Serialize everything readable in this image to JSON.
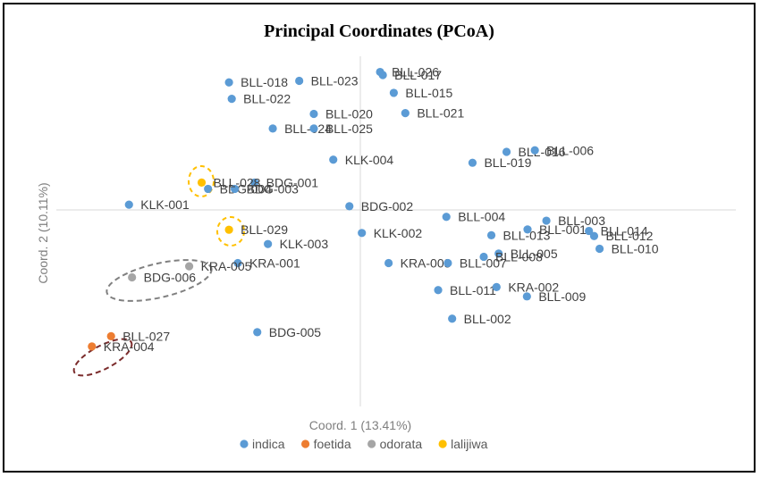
{
  "chart_data": {
    "type": "scatter",
    "title": "Principal Coordinates (PCoA)",
    "xlabel": "Coord. 1 (13.41%)",
    "ylabel": "Coord. 2 (10.11%)",
    "xlim": [
      -1.0,
      1.0
    ],
    "ylim": [
      -1.0,
      1.0
    ],
    "grid": false,
    "legend_position": "bottom",
    "series": [
      {
        "name": "indica",
        "color": "#5b9bd5",
        "points": [
          {
            "label": "BLL-018",
            "x": -0.432,
            "y": 0.83
          },
          {
            "label": "BLL-023",
            "x": -0.201,
            "y": 0.84
          },
          {
            "label": "BLL-026",
            "x": 0.065,
            "y": 0.898
          },
          {
            "label": "BLL-017",
            "x": 0.074,
            "y": 0.878
          },
          {
            "label": "BLL-022",
            "x": -0.423,
            "y": 0.723
          },
          {
            "label": "BLL-015",
            "x": 0.11,
            "y": 0.762
          },
          {
            "label": "BLL-020",
            "x": -0.153,
            "y": 0.625
          },
          {
            "label": "BLL-021",
            "x": 0.148,
            "y": 0.63
          },
          {
            "label": "BLL-024",
            "x": -0.288,
            "y": 0.53
          },
          {
            "label": "BLL-025",
            "x": -0.153,
            "y": 0.53
          },
          {
            "label": "BLL-016",
            "x": 0.481,
            "y": 0.378
          },
          {
            "label": "BLL-006",
            "x": 0.574,
            "y": 0.388
          },
          {
            "label": "KLK-004",
            "x": -0.089,
            "y": 0.327
          },
          {
            "label": "BLL-019",
            "x": 0.369,
            "y": 0.307
          },
          {
            "label": "BDG-001",
            "x": -0.348,
            "y": 0.178
          },
          {
            "label": "BDG-004",
            "x": -0.501,
            "y": 0.137
          },
          {
            "label": "BDG-003",
            "x": -0.413,
            "y": 0.137
          },
          {
            "label": "KLK-001",
            "x": -0.761,
            "y": 0.034
          },
          {
            "label": "BDG-002",
            "x": -0.036,
            "y": 0.024
          },
          {
            "label": "BLL-004",
            "x": 0.283,
            "y": -0.045
          },
          {
            "label": "BLL-003",
            "x": 0.612,
            "y": -0.07
          },
          {
            "label": "BLL-001",
            "x": 0.55,
            "y": -0.127
          },
          {
            "label": "BLL-014",
            "x": 0.752,
            "y": -0.137
          },
          {
            "label": "BLL-012",
            "x": 0.769,
            "y": -0.17
          },
          {
            "label": "BLL-013",
            "x": 0.431,
            "y": -0.165
          },
          {
            "label": "KLK-002",
            "x": 0.005,
            "y": -0.15
          },
          {
            "label": "KLK-003",
            "x": -0.304,
            "y": -0.222
          },
          {
            "label": "BLL-010",
            "x": 0.787,
            "y": -0.253
          },
          {
            "label": "BLL-005",
            "x": 0.455,
            "y": -0.284
          },
          {
            "label": "BLL-008",
            "x": 0.406,
            "y": -0.305
          },
          {
            "label": "KRA-001",
            "x": -0.403,
            "y": -0.346
          },
          {
            "label": "KRA-003",
            "x": 0.093,
            "y": -0.346
          },
          {
            "label": "BLL-007",
            "x": 0.288,
            "y": -0.346
          },
          {
            "label": "BLL-011",
            "x": 0.256,
            "y": -0.522
          },
          {
            "label": "KRA-002",
            "x": 0.448,
            "y": -0.502
          },
          {
            "label": "BLL-009",
            "x": 0.548,
            "y": -0.563
          },
          {
            "label": "BLL-002",
            "x": 0.302,
            "y": -0.708
          },
          {
            "label": "BDG-005",
            "x": -0.339,
            "y": -0.796
          }
        ]
      },
      {
        "name": "foetida",
        "color": "#ed7d31",
        "points": [
          {
            "label": "BLL-027",
            "x": -0.82,
            "y": -0.822
          },
          {
            "label": "KRA-004",
            "x": -0.883,
            "y": -0.889
          }
        ]
      },
      {
        "name": "odorata",
        "color": "#a5a5a5",
        "points": [
          {
            "label": "KRA-005",
            "x": -0.563,
            "y": -0.367
          },
          {
            "label": "BDG-006",
            "x": -0.751,
            "y": -0.439
          }
        ]
      },
      {
        "name": "lalijiwa",
        "color": "#ffc000",
        "points": [
          {
            "label": "BLL-028",
            "x": -0.522,
            "y": 0.178
          },
          {
            "label": "BLL-029",
            "x": -0.432,
            "y": -0.129
          }
        ]
      }
    ],
    "annotations": [
      {
        "shape": "ellipse",
        "style": "dashed",
        "color": "#ffc000",
        "label": "BLL-028"
      },
      {
        "shape": "ellipse",
        "style": "dashed",
        "color": "#ffc000",
        "label": "BLL-029"
      },
      {
        "shape": "ellipse",
        "style": "dashed",
        "color": "#808080",
        "label": "odorata"
      },
      {
        "shape": "ellipse",
        "style": "dashed",
        "color": "#7b2c2c",
        "label": "foetida"
      }
    ]
  }
}
